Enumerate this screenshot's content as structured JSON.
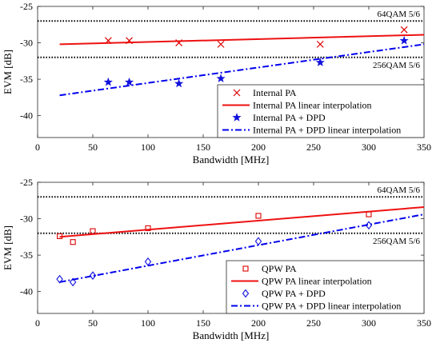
{
  "chart_data": [
    {
      "type": "scatter",
      "xlabel": "Bandwidth [MHz]",
      "ylabel": "EVM [dB]",
      "xlim": [
        0,
        350
      ],
      "ylim": [
        -43,
        -25
      ],
      "xticks": [
        "0",
        "50",
        "100",
        "150",
        "200",
        "250",
        "300",
        "350"
      ],
      "yticks": [
        "-25",
        "-30",
        "-35",
        "-40"
      ],
      "reference_lines": [
        {
          "label": "64QAM 5/6",
          "y": -27
        },
        {
          "label": "256QAM 5/6",
          "y": -32
        }
      ],
      "series": [
        {
          "name": "Internal PA",
          "style": "marker-x",
          "color": "#dd0000",
          "x": [
            64,
            83,
            128,
            166,
            256,
            332
          ],
          "y": [
            -29.7,
            -29.7,
            -30.0,
            -30.2,
            -30.2,
            -28.2
          ]
        },
        {
          "name": "Internal PA linear interpolation",
          "style": "line-solid",
          "color": "#ee1111",
          "x": [
            20,
            350
          ],
          "y": [
            -30.2,
            -28.9
          ]
        },
        {
          "name": "Internal PA + DPD",
          "style": "marker-star",
          "color": "#1111dd",
          "x": [
            64,
            83,
            128,
            166,
            256,
            332
          ],
          "y": [
            -35.4,
            -35.4,
            -35.6,
            -34.9,
            -32.7,
            -29.7
          ]
        },
        {
          "name": "Internal PA + DPD linear interpolation",
          "style": "line-dashdot",
          "color": "#0000ee",
          "x": [
            20,
            350
          ],
          "y": [
            -37.2,
            -30.2
          ]
        }
      ]
    },
    {
      "type": "scatter",
      "xlabel": "Bandwidth [MHz]",
      "ylabel": "EVM [dB]",
      "xlim": [
        0,
        350
      ],
      "ylim": [
        -43,
        -25
      ],
      "xticks": [
        "0",
        "50",
        "100",
        "150",
        "200",
        "250",
        "300",
        "350"
      ],
      "yticks": [
        "-25",
        "-30",
        "-35",
        "-40"
      ],
      "reference_lines": [
        {
          "label": "64QAM 5/6",
          "y": -27
        },
        {
          "label": "256QAM 5/6",
          "y": -32
        }
      ],
      "series": [
        {
          "name": "QPW PA",
          "style": "marker-square",
          "color": "#dd0000",
          "x": [
            20,
            32,
            50,
            100,
            200,
            300
          ],
          "y": [
            -32.4,
            -33.2,
            -31.7,
            -31.3,
            -29.6,
            -29.4
          ]
        },
        {
          "name": "QPW PA linear interpolation",
          "style": "line-solid",
          "color": "#ee1111",
          "x": [
            20,
            350
          ],
          "y": [
            -32.5,
            -28.4
          ]
        },
        {
          "name": "QPW PA + DPD",
          "style": "marker-diamond",
          "color": "#1111dd",
          "x": [
            20,
            32,
            50,
            100,
            200,
            300
          ],
          "y": [
            -38.3,
            -38.7,
            -37.8,
            -35.9,
            -33.1,
            -30.9
          ]
        },
        {
          "name": "QPW PA + DPD linear interpolation",
          "style": "line-dashdot",
          "color": "#0000ee",
          "x": [
            20,
            350
          ],
          "y": [
            -38.7,
            -29.4
          ]
        }
      ]
    }
  ]
}
